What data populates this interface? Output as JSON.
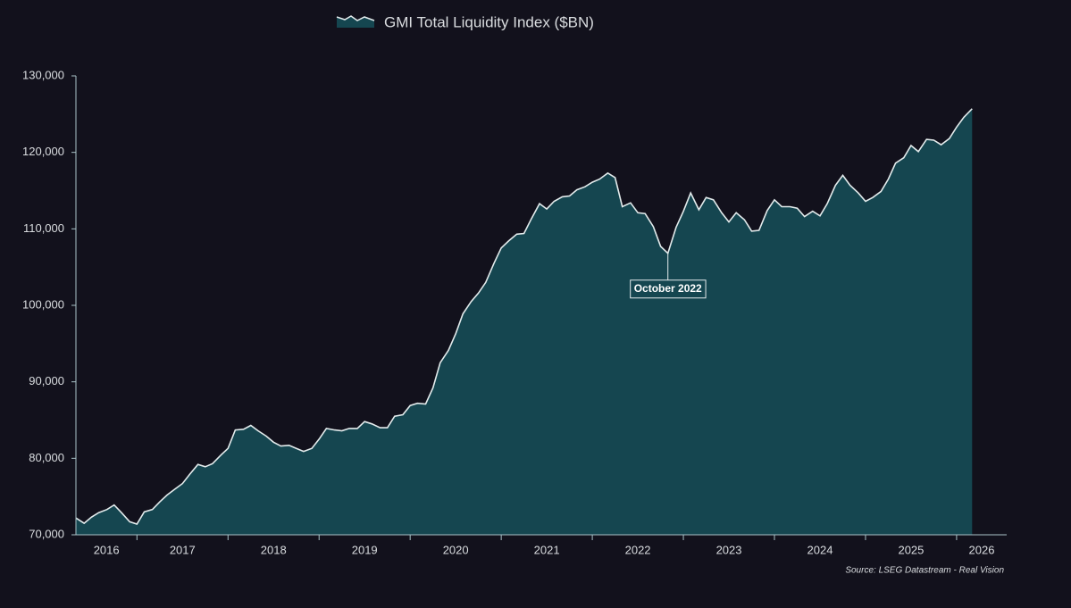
{
  "chart_data": {
    "type": "area",
    "series": [
      {
        "name": "GMI Total Liquidity Index ($BN)",
        "color": "#154650",
        "line_color": "#e3ebec",
        "x": [
          2016.33,
          2016.42,
          2016.5,
          2016.58,
          2016.67,
          2016.75,
          2016.83,
          2016.92,
          2017.0,
          2017.08,
          2017.17,
          2017.25,
          2017.33,
          2017.42,
          2017.5,
          2017.58,
          2017.67,
          2017.75,
          2017.83,
          2017.92,
          2018.0,
          2018.08,
          2018.17,
          2018.25,
          2018.33,
          2018.42,
          2018.5,
          2018.58,
          2018.67,
          2018.75,
          2018.83,
          2018.92,
          2019.0,
          2019.08,
          2019.17,
          2019.25,
          2019.33,
          2019.42,
          2019.5,
          2019.58,
          2019.67,
          2019.75,
          2019.83,
          2019.92,
          2020.0,
          2020.08,
          2020.17,
          2020.25,
          2020.33,
          2020.42,
          2020.5,
          2020.58,
          2020.67,
          2020.75,
          2020.83,
          2020.92,
          2021.0,
          2021.08,
          2021.17,
          2021.25,
          2021.33,
          2021.42,
          2021.5,
          2021.58,
          2021.67,
          2021.75,
          2021.83,
          2021.92,
          2022.0,
          2022.08,
          2022.17,
          2022.25,
          2022.33,
          2022.42,
          2022.5,
          2022.58,
          2022.67,
          2022.75,
          2022.83,
          2022.92,
          2023.0,
          2023.08,
          2023.17,
          2023.25,
          2023.33,
          2023.42,
          2023.5,
          2023.58,
          2023.67,
          2023.75,
          2023.83,
          2023.92,
          2024.0,
          2024.08,
          2024.17,
          2024.25,
          2024.33,
          2024.42,
          2024.5,
          2024.58,
          2024.67,
          2024.75,
          2024.83,
          2024.92,
          2025.0,
          2025.08,
          2025.17,
          2025.25,
          2025.33,
          2025.42,
          2025.5,
          2025.58,
          2025.67,
          2025.75,
          2025.83,
          2025.92,
          2026.0,
          2026.08,
          2026.17
        ],
        "values": [
          72200,
          71500,
          72300,
          72900,
          73300,
          73900,
          72900,
          71700,
          71400,
          73000,
          73300,
          74300,
          75200,
          76000,
          76700,
          77900,
          79200,
          78900,
          79300,
          80400,
          81300,
          83700,
          83800,
          84300,
          83600,
          82900,
          82100,
          81600,
          81700,
          81300,
          80900,
          81300,
          82500,
          83900,
          83700,
          83600,
          83900,
          83900,
          84800,
          84500,
          84000,
          84000,
          85500,
          85700,
          86900,
          87200,
          87100,
          89200,
          92500,
          94100,
          96300,
          98900,
          100500,
          101600,
          103000,
          105500,
          107500,
          108400,
          109300,
          109400,
          111300,
          113300,
          112600,
          113600,
          114200,
          114300,
          115100,
          115500,
          116100,
          116500,
          117300,
          116700,
          112900,
          113400,
          112100,
          112000,
          110300,
          107700,
          106800,
          110200,
          112300,
          114700,
          112500,
          114100,
          113800,
          112100,
          110900,
          112100,
          111200,
          109700,
          109800,
          112400,
          113800,
          112900,
          112900,
          112700,
          111600,
          112300,
          111700,
          113300,
          115700,
          117000,
          115700,
          114700,
          113600,
          114100,
          114900,
          116500,
          118600,
          119300,
          120900,
          120100,
          121700,
          121600,
          121000,
          121800,
          123300,
          124600,
          125700
        ]
      }
    ],
    "xlim": [
      2016.33,
      2026.55
    ],
    "xticks": [
      2016,
      2017,
      2018,
      2019,
      2020,
      2021,
      2022,
      2023,
      2024,
      2025,
      2026
    ],
    "ylim": [
      70000,
      130000
    ],
    "yticks": [
      {
        "value": 70000,
        "label": "70,000"
      },
      {
        "value": 80000,
        "label": "80,000"
      },
      {
        "value": 90000,
        "label": "90,000"
      },
      {
        "value": 100000,
        "label": "100,000"
      },
      {
        "value": 110000,
        "label": "110,000"
      },
      {
        "value": 120000,
        "label": "120,000"
      },
      {
        "value": 130000,
        "label": "130,000"
      }
    ],
    "legend": "top",
    "annotations": [
      {
        "text": "October 2022",
        "x": 2022.83
      }
    ],
    "source": "Source: LSEG Datastream - Real Vision"
  }
}
